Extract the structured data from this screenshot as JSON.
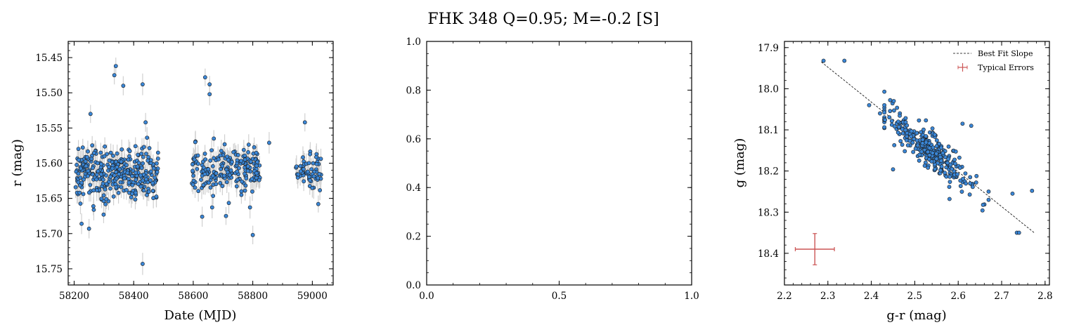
{
  "figure": {
    "title": "FHK 348  Q=0.95; M=-0.2 [S]"
  },
  "chart_data": [
    {
      "type": "scatter",
      "xlabel": "Date (MJD)",
      "ylabel": "r (mag)",
      "xlim": [
        58180,
        59070
      ],
      "ylim": [
        15.773,
        15.427
      ],
      "y_inverted": true,
      "xticks": [
        "58200",
        "58400",
        "58600",
        "58800",
        "59000"
      ],
      "yticks": [
        "15.45",
        "15.50",
        "15.55",
        "15.60",
        "15.65",
        "15.70",
        "15.75"
      ],
      "marker_color": "#3a86d6",
      "error_color": "#d0d0d0",
      "seasons": [
        {
          "x_range": [
            58205,
            58485
          ],
          "y_center": 15.615,
          "y_spread": 0.027,
          "count": 330
        },
        {
          "x_range": [
            58595,
            58825
          ],
          "y_center": 15.61,
          "y_spread": 0.022,
          "count": 210
        },
        {
          "x_range": [
            58945,
            59030
          ],
          "y_center": 15.612,
          "y_spread": 0.018,
          "count": 60
        }
      ],
      "notable_points": [
        {
          "x": 58340,
          "y": 15.462
        },
        {
          "x": 58335,
          "y": 15.475
        },
        {
          "x": 58430,
          "y": 15.488
        },
        {
          "x": 58365,
          "y": 15.49
        },
        {
          "x": 58640,
          "y": 15.478
        },
        {
          "x": 58655,
          "y": 15.488
        },
        {
          "x": 58655,
          "y": 15.502
        },
        {
          "x": 58255,
          "y": 15.53
        },
        {
          "x": 58440,
          "y": 15.542
        },
        {
          "x": 58975,
          "y": 15.542
        },
        {
          "x": 58855,
          "y": 15.571
        },
        {
          "x": 58430,
          "y": 15.743
        },
        {
          "x": 58800,
          "y": 15.702
        },
        {
          "x": 58250,
          "y": 15.693
        },
        {
          "x": 58225,
          "y": 15.686
        },
        {
          "x": 58710,
          "y": 15.675
        },
        {
          "x": 58630,
          "y": 15.676
        },
        {
          "x": 59020,
          "y": 15.658
        }
      ]
    },
    {
      "type": "scatter",
      "xlim": [
        0.0,
        1.0
      ],
      "ylim": [
        0.0,
        1.0
      ],
      "xticks": [
        "0.0",
        "0.5",
        "1.0"
      ],
      "yticks": [
        "0.0",
        "0.2",
        "0.4",
        "0.6",
        "0.8",
        "1.0"
      ],
      "empty": true
    },
    {
      "type": "scatter",
      "xlabel": "g-r (mag)",
      "ylabel": "g (mag)",
      "xlim": [
        2.2,
        2.81
      ],
      "ylim": [
        18.477,
        17.885
      ],
      "y_inverted": true,
      "xticks": [
        "2.2",
        "2.3",
        "2.4",
        "2.5",
        "2.6",
        "2.7",
        "2.8"
      ],
      "yticks": [
        "17.9",
        "18.0",
        "18.1",
        "18.2",
        "18.3",
        "18.4"
      ],
      "marker_color": "#3a86d6",
      "best_fit": {
        "x": [
          2.285,
          2.775
        ],
        "y": [
          17.935,
          18.35
        ],
        "color": "#000000"
      },
      "typical_error": {
        "x": 2.27,
        "y": 18.39,
        "xerr": 0.045,
        "yerr": 0.038,
        "color": "#cc5555"
      },
      "cloud": {
        "x_center": 2.535,
        "x_spread": 0.05,
        "slope": 0.847,
        "y_at_center": 18.148,
        "y_scatter": 0.022,
        "count": 320
      },
      "notable_points": [
        {
          "x": 2.29,
          "y": 17.932
        },
        {
          "x": 2.338,
          "y": 17.932
        },
        {
          "x": 2.735,
          "y": 18.35
        },
        {
          "x": 2.74,
          "y": 18.35
        },
        {
          "x": 2.77,
          "y": 18.248
        },
        {
          "x": 2.45,
          "y": 18.196
        },
        {
          "x": 2.42,
          "y": 18.06
        },
        {
          "x": 2.43,
          "y": 18.04
        },
        {
          "x": 2.395,
          "y": 18.04
        },
        {
          "x": 2.61,
          "y": 18.085
        },
        {
          "x": 2.63,
          "y": 18.09
        },
        {
          "x": 2.67,
          "y": 18.27
        },
        {
          "x": 2.58,
          "y": 18.268
        },
        {
          "x": 2.725,
          "y": 18.255
        },
        {
          "x": 2.67,
          "y": 18.25
        }
      ],
      "legend": {
        "position": "upper right",
        "entries": [
          "Best Fit Slope",
          "Typical Errors"
        ]
      }
    }
  ]
}
